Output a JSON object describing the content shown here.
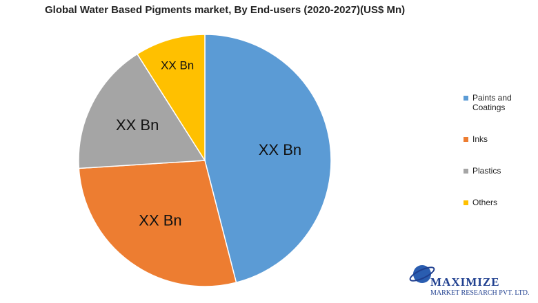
{
  "chart_data": {
    "type": "pie",
    "title": "Global Water Based Pigments market, By End-users (2020-2027)(US$ Mn)",
    "categories": [
      "Paints and Coatings",
      "Inks",
      "Plastics",
      "Others"
    ],
    "values": [
      46,
      28,
      17,
      9
    ],
    "value_labels": [
      "XX Bn",
      "XX Bn",
      "XX Bn",
      "XX Bn"
    ],
    "colors": [
      "#5b9bd5",
      "#ed7d31",
      "#a5a5a5",
      "#ffc000"
    ],
    "legend": "right"
  },
  "logo": {
    "name": "MAXIMIZE",
    "tagline": "MARKET RESEARCH PVT. LTD."
  }
}
